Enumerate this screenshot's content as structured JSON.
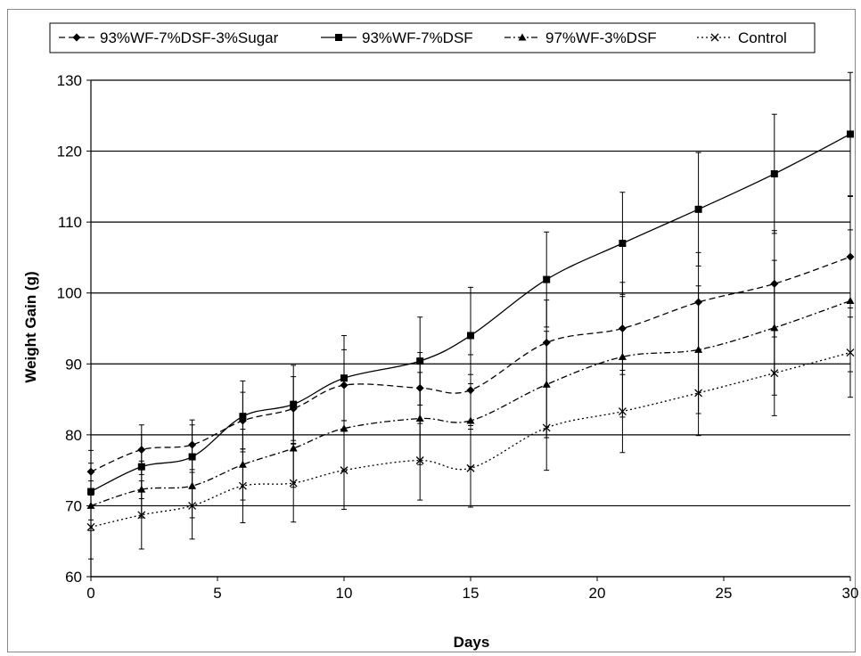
{
  "chart_data": {
    "type": "line",
    "title": "",
    "xlabel": "Days",
    "ylabel": "Weight Gain (g)",
    "xlim": [
      0,
      30
    ],
    "ylim": [
      60,
      130
    ],
    "xticks": [
      0,
      5,
      10,
      15,
      20,
      25,
      30
    ],
    "yticks": [
      60,
      70,
      80,
      90,
      100,
      110,
      120,
      130
    ],
    "grid": "horizontal",
    "legend_position": "top",
    "series": [
      {
        "name": "93%WF-7%DSF-3%Sugar",
        "marker": "diamond",
        "dash": "dashed",
        "x": [
          0,
          2,
          4,
          6,
          8,
          10,
          13,
          15,
          18,
          21,
          24,
          27,
          30
        ],
        "y": [
          74.8,
          77.9,
          78.6,
          82.0,
          83.7,
          87.0,
          86.6,
          86.3,
          93.0,
          95.0,
          98.7,
          101.3,
          105.1
        ],
        "err": [
          3.0,
          3.5,
          3.5,
          4.0,
          4.5,
          5.0,
          5.0,
          5.0,
          6.0,
          6.5,
          7.0,
          7.5,
          8.5
        ]
      },
      {
        "name": "93%WF-7%DSF",
        "marker": "square",
        "dash": "solid",
        "x": [
          0,
          2,
          4,
          6,
          8,
          10,
          13,
          15,
          18,
          21,
          24,
          27,
          30
        ],
        "y": [
          72.0,
          75.5,
          76.9,
          82.6,
          84.3,
          88.0,
          90.4,
          94.0,
          101.9,
          107.0,
          111.8,
          116.8,
          122.4
        ],
        "err": [
          4.0,
          4.5,
          4.5,
          5.0,
          5.5,
          6.0,
          6.2,
          6.8,
          6.7,
          7.2,
          8.0,
          8.4,
          8.7
        ]
      },
      {
        "name": "97%WF-3%DSF",
        "marker": "triangle",
        "dash": "dashdot",
        "x": [
          0,
          2,
          4,
          6,
          8,
          10,
          13,
          15,
          18,
          21,
          24,
          27,
          30
        ],
        "y": [
          70.0,
          72.3,
          72.8,
          75.8,
          78.1,
          80.9,
          82.3,
          82.0,
          87.1,
          91.0,
          92.0,
          95.1,
          98.9
        ],
        "err": [
          3.5,
          4.0,
          4.5,
          5.0,
          5.5,
          6.0,
          6.5,
          6.5,
          7.5,
          8.5,
          9.0,
          9.5,
          10.0
        ]
      },
      {
        "name": "Control",
        "marker": "x",
        "dash": "dotted",
        "x": [
          0,
          2,
          4,
          6,
          8,
          10,
          13,
          15,
          18,
          21,
          24,
          27,
          30
        ],
        "y": [
          67.0,
          68.7,
          70.0,
          72.8,
          73.2,
          75.0,
          76.4,
          75.3,
          81.0,
          83.3,
          85.9,
          88.7,
          91.6
        ],
        "err": [
          4.5,
          4.8,
          4.7,
          5.2,
          5.5,
          5.5,
          5.6,
          5.5,
          6.0,
          5.8,
          6.0,
          6.0,
          6.3
        ]
      }
    ]
  }
}
